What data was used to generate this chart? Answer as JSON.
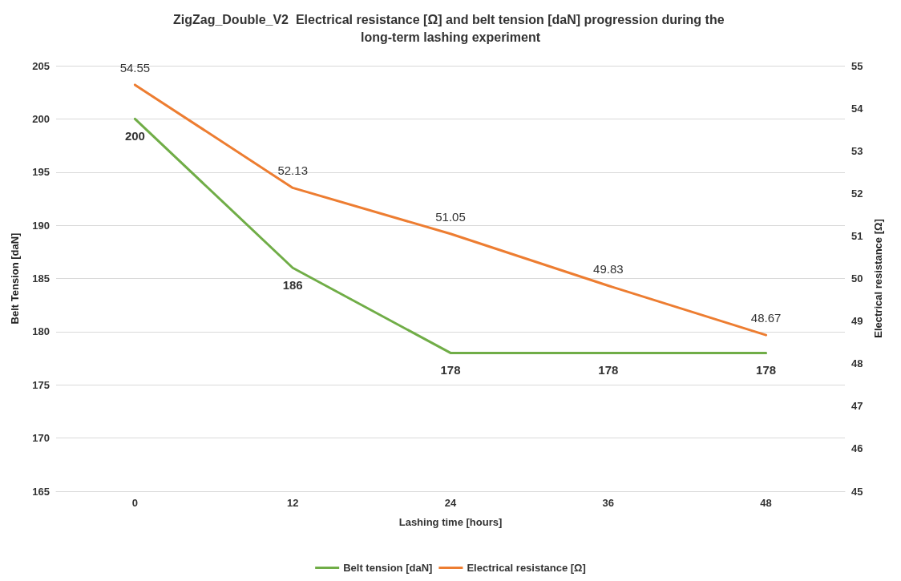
{
  "chart_data": {
    "type": "line",
    "title": "ZigZag_Double_V2  Electrical resistance [Ω] and belt tension [daN] progression during the long-term lashing experiment",
    "xlabel": "Lashing time [hours]",
    "ylabel": "Belt Tension [daN]",
    "y2label": "Electrical resistance [Ω]",
    "categories": [
      "0",
      "12",
      "24",
      "36",
      "48"
    ],
    "series": [
      {
        "name": "Belt tension [daN]",
        "color": "#70ad47",
        "values": [
          200,
          186,
          178,
          178,
          178
        ]
      },
      {
        "name": "Electrical resistance [Ω]",
        "color": "#ed7d31",
        "values": [
          54.55,
          52.13,
          51.05,
          49.83,
          48.67
        ],
        "axis": "y2"
      }
    ],
    "ylim": [
      165,
      205
    ],
    "yticks": [
      165,
      170,
      175,
      180,
      185,
      190,
      195,
      200,
      205
    ],
    "y2lim": [
      45,
      55
    ],
    "y2ticks": [
      45,
      46,
      47,
      48,
      49,
      50,
      51,
      52,
      53,
      54,
      55
    ],
    "data_labels": true,
    "grid": "y",
    "legend": "bottom",
    "marker": "none",
    "line_style": "solid"
  }
}
